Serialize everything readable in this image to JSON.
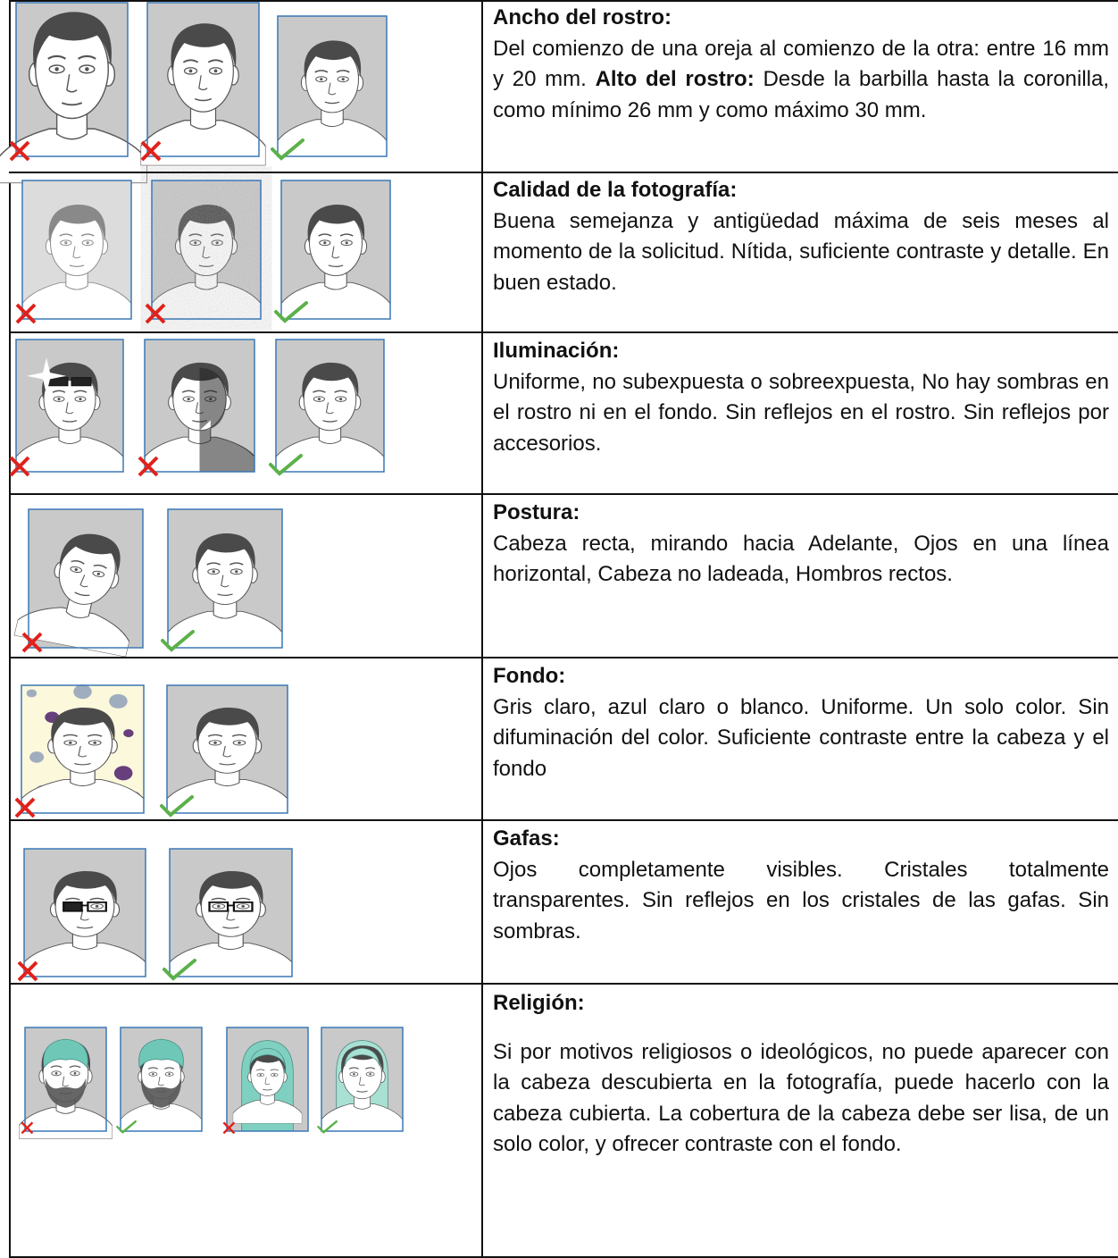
{
  "rows": [
    {
      "sections": [
        {
          "heading": "Ancho del rostro:",
          "text": "Del comienzo de una oreja al comienzo de la otra: entre 16 mm y 20 mm."
        },
        {
          "heading": "Alto del rostro:",
          "text": "Desde la barbilla hasta la coronilla, como mínimo 26 mm y como máximo 30 mm."
        }
      ]
    },
    {
      "sections": [
        {
          "heading": "Calidad de la fotografía:",
          "text": "Buena semejanza y antigüedad máxima de seis meses al momento de la solicitud.  Nítida, suficiente contraste y detalle.  En buen estado."
        }
      ]
    },
    {
      "sections": [
        {
          "heading": "Iluminación:",
          "text": "Uniforme, no subexpuesta o sobreexpuesta, No hay sombras en el rostro ni en el fondo.  Sin reflejos en el rostro.  Sin reflejos por accesorios."
        }
      ]
    },
    {
      "sections": [
        {
          "heading": "Postura:",
          "text": "Cabeza recta, mirando hacia Adelante, Ojos en una línea horizontal, Cabeza no ladeada, Hombros rectos."
        }
      ]
    },
    {
      "sections": [
        {
          "heading": "Fondo:",
          "text": "Gris claro, azul claro o blanco. Uniforme. Un solo color.  Sin difuminación del color.  Suficiente contraste entre la cabeza y el fondo"
        }
      ]
    },
    {
      "sections": [
        {
          "heading": "Gafas:",
          "text": "Ojos completamente visibles.  Cristales totalmente transparentes. Sin reflejos en los cristales de las gafas.  Sin sombras."
        }
      ]
    },
    {
      "sections": [
        {
          "heading": "Religión:",
          "text": "Si por motivos religiosos o ideológicos, no puede aparecer con la cabeza descubierta en la fotografía, puede hacerlo con la cabeza cubierta. La cobertura de la cabeza debe ser lisa, de un solo color, y ofrecer contraste con el fondo."
        }
      ]
    }
  ]
}
